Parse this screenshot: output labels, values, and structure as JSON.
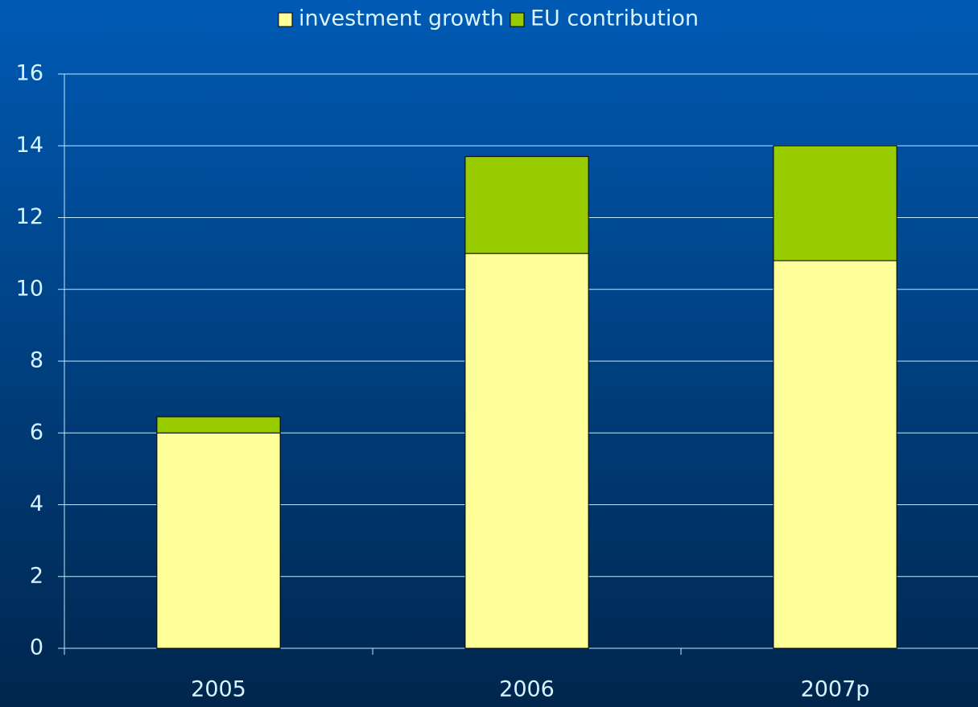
{
  "chart_data": {
    "type": "stacked_bar",
    "categories": [
      "2005",
      "2006",
      "2007p"
    ],
    "series": [
      {
        "name": "investment growth",
        "color": "#ffff99",
        "values": [
          6.0,
          11.0,
          10.8
        ]
      },
      {
        "name": "EU contribution",
        "color": "#99cc00",
        "values": [
          0.45,
          2.7,
          3.2
        ]
      }
    ],
    "ylim": [
      0,
      16
    ],
    "yticks": [
      0,
      2,
      4,
      6,
      8,
      10,
      12,
      14,
      16
    ],
    "grid": true,
    "legend": "top"
  }
}
